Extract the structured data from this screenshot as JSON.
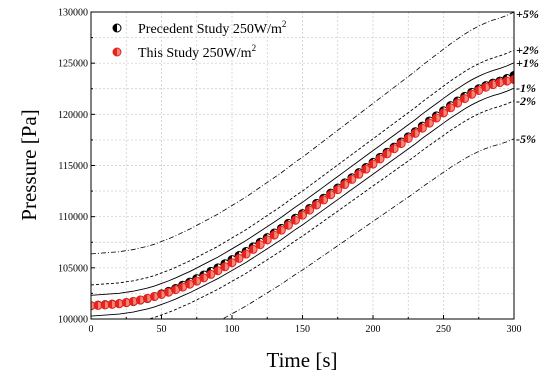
{
  "chart_data": {
    "type": "scatter",
    "xlabel": "Time [s]",
    "ylabel": "Pressure [Pa]",
    "xlim": [
      0,
      300
    ],
    "ylim": [
      100000,
      130000
    ],
    "x_ticks": [
      "0",
      "50",
      "100",
      "150",
      "200",
      "250",
      "300"
    ],
    "y_ticks": [
      "100000",
      "105000",
      "110000",
      "115000",
      "120000",
      "125000",
      "130000"
    ],
    "grid": true,
    "legend_position": "top-left",
    "colors": {
      "precedent": "#000000",
      "this_study": "#e8231a",
      "bands": "#000000"
    },
    "series": [
      {
        "name": "Precedent Study 250W/m2",
        "legend_label": "Precedent Study 250W/m",
        "legend_sup": "2",
        "marker": "half-filled-circle",
        "x": [
          0,
          5,
          10,
          15,
          20,
          25,
          30,
          35,
          40,
          45,
          50,
          55,
          60,
          65,
          70,
          75,
          80,
          85,
          90,
          95,
          100,
          105,
          110,
          115,
          120,
          125,
          130,
          135,
          140,
          145,
          150,
          155,
          160,
          165,
          170,
          175,
          180,
          185,
          190,
          195,
          200,
          205,
          210,
          215,
          220,
          225,
          230,
          235,
          240,
          245,
          250,
          255,
          260,
          265,
          270,
          275,
          280,
          285,
          290,
          295,
          300
        ],
        "y": [
          101300,
          101350,
          101400,
          101450,
          101500,
          101600,
          101700,
          101850,
          102000,
          102200,
          102450,
          102700,
          102980,
          103300,
          103600,
          103950,
          104300,
          104650,
          105000,
          105400,
          105800,
          106200,
          106600,
          107050,
          107500,
          107950,
          108400,
          108850,
          109350,
          109850,
          110300,
          110800,
          111300,
          111800,
          112300,
          112800,
          113300,
          113800,
          114300,
          114800,
          115300,
          115800,
          116300,
          116800,
          117300,
          117800,
          118300,
          118850,
          119350,
          119850,
          120350,
          120850,
          121300,
          121750,
          122150,
          122500,
          122800,
          123050,
          123250,
          123500,
          123800
        ]
      },
      {
        "name": "This Study 250W/m2",
        "legend_label": "This Study 250W/m",
        "legend_sup": "2",
        "marker": "filled-circle",
        "x": [
          0,
          5,
          10,
          15,
          20,
          25,
          30,
          35,
          40,
          45,
          50,
          55,
          60,
          65,
          70,
          75,
          80,
          85,
          90,
          95,
          100,
          105,
          110,
          115,
          120,
          125,
          130,
          135,
          140,
          145,
          150,
          155,
          160,
          165,
          170,
          175,
          180,
          185,
          190,
          195,
          200,
          205,
          210,
          215,
          220,
          225,
          230,
          235,
          240,
          245,
          250,
          255,
          260,
          265,
          270,
          275,
          280,
          285,
          290,
          295,
          300
        ],
        "y": [
          101300,
          101330,
          101370,
          101430,
          101500,
          101600,
          101720,
          101860,
          102020,
          102200,
          102400,
          102620,
          102860,
          103120,
          103400,
          103700,
          104020,
          104360,
          104720,
          105100,
          105500,
          105920,
          106350,
          106800,
          107260,
          107730,
          108200,
          108680,
          109160,
          109650,
          110140,
          110640,
          111140,
          111640,
          112140,
          112640,
          113140,
          113640,
          114140,
          114640,
          115140,
          115640,
          116140,
          116640,
          117140,
          117640,
          118140,
          118640,
          119140,
          119640,
          120140,
          120640,
          121100,
          121540,
          121960,
          122330,
          122650,
          122900,
          123100,
          123250,
          123400
        ]
      }
    ],
    "bands": [
      {
        "label": "+5%",
        "factor": 1.05
      },
      {
        "label": "+2%",
        "factor": 1.02
      },
      {
        "label": "+1%",
        "factor": 1.01
      },
      {
        "label": "-1%",
        "factor": 0.99
      },
      {
        "label": "-2%",
        "factor": 0.98
      },
      {
        "label": "-5%",
        "factor": 0.95
      }
    ]
  }
}
